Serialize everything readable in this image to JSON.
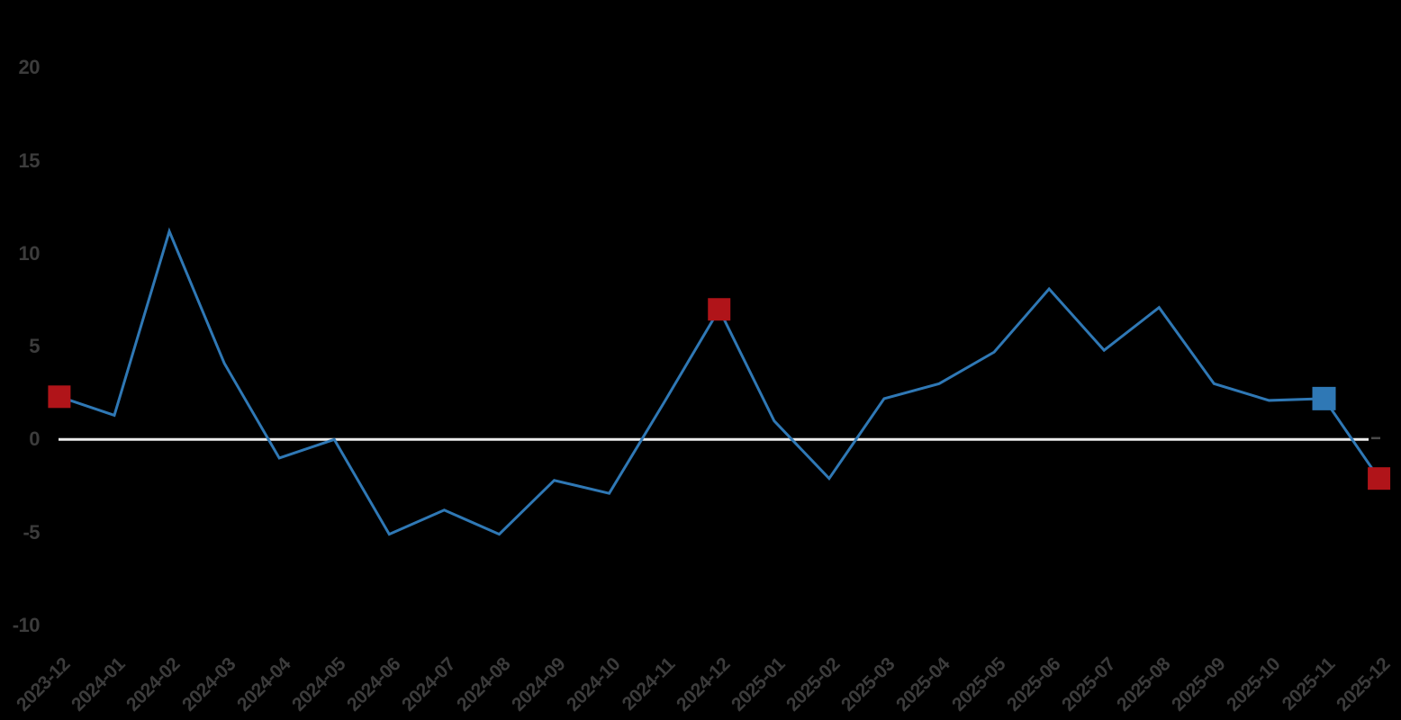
{
  "colors": {
    "background": "#000000",
    "line": "#2F78B5",
    "marker_red": "#B01419",
    "marker_blue": "#2F78B5",
    "zero_line": "#EBEBEB",
    "axis_end_dash": "#4A4A4A",
    "axis_label": "#3C3C3C"
  },
  "y_axis": {
    "ticks": [
      20,
      15,
      10,
      5,
      0,
      -5,
      -10
    ]
  },
  "chart_data": {
    "type": "line",
    "title": "",
    "xlabel": "",
    "ylabel": "",
    "legend": false,
    "grid": false,
    "zero_baseline": true,
    "ylim": [
      -10,
      20
    ],
    "categories": [
      "2023-12",
      "2024-01",
      "2024-02",
      "2024-03",
      "2024-04",
      "2024-05",
      "2024-06",
      "2024-07",
      "2024-08",
      "2024-09",
      "2024-10",
      "2024-11",
      "2024-12",
      "2025-01",
      "2025-02",
      "2025-03",
      "2025-04",
      "2025-05",
      "2025-06",
      "2025-07",
      "2025-08",
      "2025-09",
      "2025-10",
      "2025-11",
      "2025-12"
    ],
    "values": [
      2.3,
      1.3,
      11.2,
      4.1,
      -1.0,
      0.0,
      -5.1,
      -3.8,
      -5.1,
      -2.2,
      -2.9,
      2.0,
      7.0,
      1.0,
      -2.1,
      2.2,
      3.0,
      4.7,
      8.1,
      4.8,
      7.1,
      3.0,
      2.1,
      2.2,
      -2.1
    ],
    "markers": [
      {
        "category": "2023-12",
        "value": 2.3,
        "color": "red"
      },
      {
        "category": "2024-12",
        "value": 7.0,
        "color": "red"
      },
      {
        "category": "2025-11",
        "value": 2.2,
        "color": "blue"
      },
      {
        "category": "2025-12",
        "value": -2.1,
        "color": "red"
      }
    ]
  }
}
